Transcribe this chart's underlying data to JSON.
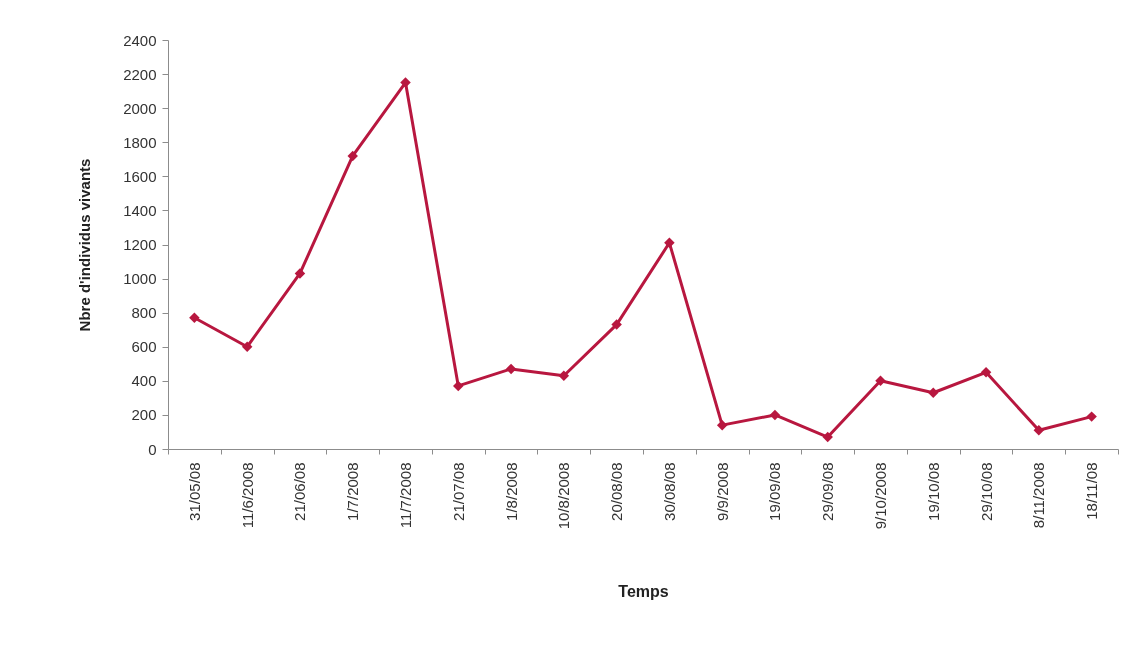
{
  "chart_data": {
    "type": "line",
    "xlabel": "Temps",
    "ylabel": "Nbre d'individus vivants",
    "categories": [
      "31/05/08",
      "11/6/2008",
      "21/06/08",
      "1/7/2008",
      "11/7/2008",
      "21/07/08",
      "1/8/2008",
      "10/8/2008",
      "20/08/08",
      "30/08/08",
      "9/9/2008",
      "19/09/08",
      "29/09/08",
      "9/10/2008",
      "19/10/08",
      "29/10/08",
      "8/11/2008",
      "18/11/08"
    ],
    "series": [
      {
        "color": "#b8173f",
        "values": [
          770,
          600,
          1030,
          1720,
          2150,
          370,
          470,
          430,
          730,
          1210,
          140,
          200,
          70,
          400,
          330,
          450,
          110,
          190
        ]
      }
    ],
    "ylim": [
      0,
      2400
    ],
    "yticks": [
      0,
      200,
      400,
      600,
      800,
      1000,
      1200,
      1400,
      1600,
      1800,
      2000,
      2200,
      2400
    ],
    "grid": false,
    "marker": "diamond",
    "line_style": "solid"
  }
}
